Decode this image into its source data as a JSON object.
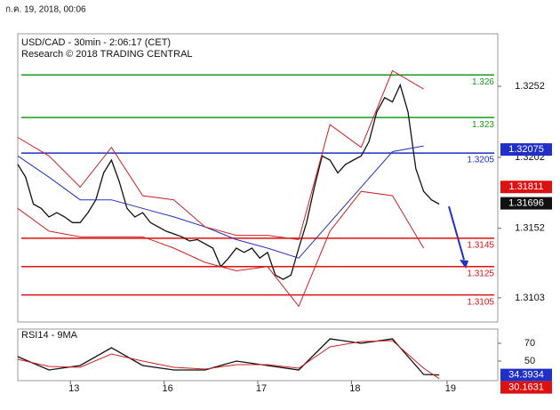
{
  "header": {
    "text": "ก.ค. 19, 2018, 00:06"
  },
  "chart_data": [
    {
      "type": "line",
      "title": "USD/CAD - 30min - 2:06:17 (CET)",
      "subtitle": "Research © 2018 TRADING CENTRAL",
      "x": [
        0,
        4,
        8,
        12,
        16,
        20,
        24,
        28,
        32,
        36,
        40,
        44,
        48,
        52,
        56,
        60,
        64,
        68,
        72,
        76,
        80,
        84,
        88,
        92,
        96,
        100,
        104,
        108,
        112,
        116,
        120,
        124,
        128,
        132,
        136,
        140,
        144,
        148,
        152,
        156,
        160,
        164,
        168,
        172,
        176,
        180,
        184,
        188,
        192,
        196,
        200,
        204,
        208,
        212,
        216
      ],
      "series": [
        {
          "color": "#111111",
          "values": [
            1.3197,
            1.3188,
            1.3169,
            1.3166,
            1.316,
            1.3163,
            1.316,
            1.3156,
            1.3156,
            1.3163,
            1.3172,
            1.3191,
            1.32,
            1.3185,
            1.3166,
            1.316,
            1.3163,
            1.3156,
            1.3153,
            1.315,
            1.3148,
            1.3146,
            1.3143,
            1.3144,
            1.3141,
            1.3138,
            1.3125,
            1.3131,
            1.3138,
            1.3135,
            1.3138,
            1.3131,
            1.3135,
            1.3119,
            1.3116,
            1.3119,
            1.3138,
            1.3156,
            1.3181,
            1.3203,
            1.32,
            1.3191,
            1.3197,
            1.32,
            1.3203,
            1.3213,
            1.3234,
            1.3244,
            1.3241,
            1.3253,
            1.3234,
            1.3194,
            1.3178,
            1.3172,
            1.3169
          ]
        },
        {
          "color": "#2233bb",
          "x": [
            0,
            16,
            32,
            48,
            64,
            80,
            96,
            112,
            128,
            144,
            160,
            176,
            192,
            208
          ],
          "values": [
            1.3203,
            1.3188,
            1.3172,
            1.3172,
            1.3166,
            1.316,
            1.3153,
            1.3144,
            1.3138,
            1.3131,
            1.3156,
            1.3181,
            1.3206,
            1.321
          ]
        },
        {
          "color": "#cc2222",
          "x": [
            0,
            16,
            32,
            48,
            64,
            80,
            96,
            112,
            128,
            144,
            160,
            176,
            192,
            208
          ],
          "values": [
            1.3216,
            1.3203,
            1.3181,
            1.3209,
            1.3175,
            1.3172,
            1.3153,
            1.3147,
            1.3147,
            1.3144,
            1.3225,
            1.3209,
            1.3263,
            1.325
          ]
        },
        {
          "color": "#cc2222",
          "x": [
            0,
            16,
            32,
            48,
            64,
            80,
            96,
            112,
            128,
            144,
            160,
            176,
            192,
            208
          ],
          "values": [
            1.3166,
            1.315,
            1.3146,
            1.3146,
            1.3146,
            1.3138,
            1.3128,
            1.3122,
            1.3125,
            1.3097,
            1.315,
            1.3178,
            1.3175,
            1.3138
          ]
        }
      ],
      "levels": [
        {
          "value": 1.326,
          "color": "#1a9a1a"
        },
        {
          "value": 1.323,
          "color": "#1a9a1a"
        },
        {
          "value": 1.3205,
          "color": "#1f2fc8"
        },
        {
          "value": 1.3145,
          "color": "#dd1111"
        },
        {
          "value": 1.3125,
          "color": "#dd1111"
        },
        {
          "value": 1.3105,
          "color": "#dd1111"
        }
      ],
      "price_tags": [
        {
          "value": 1.32075,
          "color": "#1f2fc8"
        },
        {
          "value": 1.31811,
          "color": "#dd1111"
        },
        {
          "value": 1.31696,
          "color": "#111111"
        }
      ],
      "xlim": [
        0,
        246
      ],
      "xticks": [
        {
          "value": 27,
          "label": "13"
        },
        {
          "value": 75,
          "label": "16"
        },
        {
          "value": 123,
          "label": "17"
        },
        {
          "value": 171,
          "label": "18"
        },
        {
          "value": 220,
          "label": "19"
        }
      ],
      "ylim": [
        1.3086,
        1.3289
      ],
      "yticks": [
        1.3252,
        1.3202,
        1.3152,
        1.3103
      ]
    },
    {
      "type": "line",
      "title": "RSI14 - 9MA",
      "x": [
        0,
        16,
        32,
        48,
        64,
        80,
        96,
        112,
        128,
        144,
        160,
        176,
        192,
        208,
        216
      ],
      "series": [
        {
          "color": "#111111",
          "values": [
            55,
            40,
            45,
            65,
            45,
            40,
            40,
            50,
            45,
            40,
            75,
            70,
            75,
            35,
            34.3934
          ]
        },
        {
          "color": "#cc2222",
          "values": [
            52,
            44,
            43,
            58,
            50,
            43,
            41,
            46,
            46,
            42,
            66,
            72,
            73,
            42,
            30.1631
          ]
        }
      ],
      "price_tags": [
        {
          "value": 34.3934,
          "color": "#1f2fc8"
        },
        {
          "value": 30.1631,
          "color": "#dd1111"
        }
      ],
      "xlim": [
        0,
        246
      ],
      "ylim": [
        28,
        86
      ],
      "yticks": [
        70,
        50
      ]
    }
  ]
}
